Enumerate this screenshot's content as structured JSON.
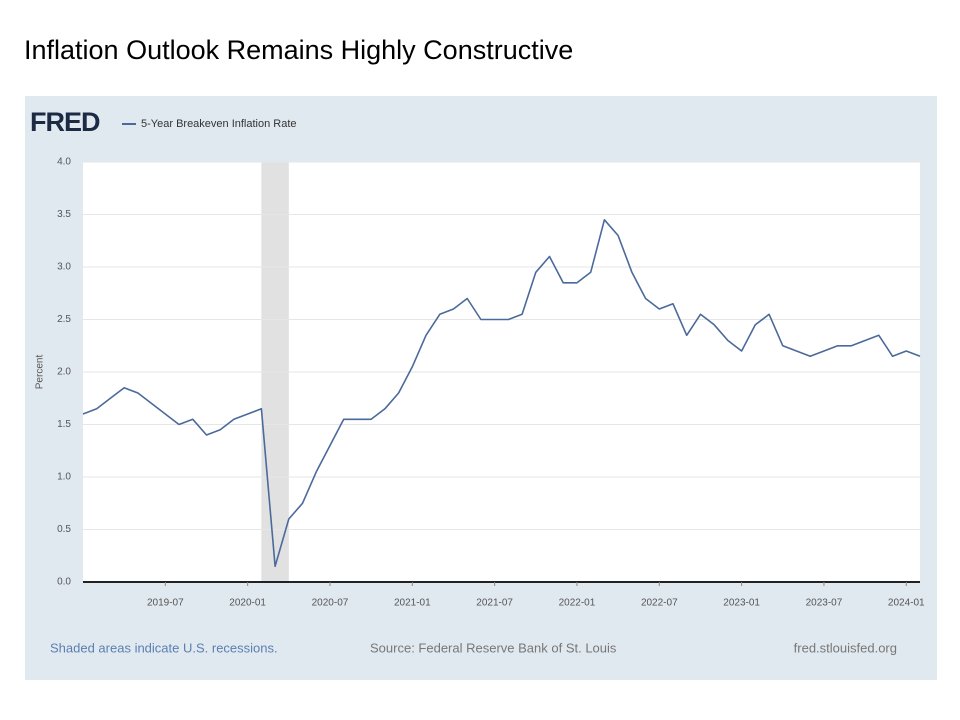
{
  "chart_data": {
    "type": "line",
    "title": "Inflation Outlook Remains Highly Constructive",
    "logo": "FRED",
    "y_label": "Percent",
    "recession_note": "Shaded areas indicate U.S. recessions.",
    "source": "Source: Federal Reserve Bank of St. Louis",
    "site": "fred.stlouisfed.org",
    "recessions": [
      [
        "2020-02",
        "2020-04"
      ]
    ],
    "recession_color": "#e1e1e1",
    "grid": true,
    "x": [
      "2019-01",
      "2019-02",
      "2019-03",
      "2019-04",
      "2019-05",
      "2019-06",
      "2019-07",
      "2019-08",
      "2019-09",
      "2019-10",
      "2019-11",
      "2019-12",
      "2020-01",
      "2020-02",
      "2020-03",
      "2020-04",
      "2020-05",
      "2020-06",
      "2020-07",
      "2020-08",
      "2020-09",
      "2020-10",
      "2020-11",
      "2020-12",
      "2021-01",
      "2021-02",
      "2021-03",
      "2021-04",
      "2021-05",
      "2021-06",
      "2021-07",
      "2021-08",
      "2021-09",
      "2021-10",
      "2021-11",
      "2021-12",
      "2022-01",
      "2022-02",
      "2022-03",
      "2022-04",
      "2022-05",
      "2022-06",
      "2022-07",
      "2022-08",
      "2022-09",
      "2022-10",
      "2022-11",
      "2022-12",
      "2023-01",
      "2023-02",
      "2023-03",
      "2023-04",
      "2023-05",
      "2023-06",
      "2023-07",
      "2023-08",
      "2023-09",
      "2023-10",
      "2023-11",
      "2023-12",
      "2024-01",
      "2024-02"
    ],
    "series": [
      {
        "name": "5-Year Breakeven Inflation Rate",
        "color": "#4b6a9b",
        "values": [
          1.6,
          1.65,
          1.75,
          1.85,
          1.8,
          1.7,
          1.6,
          1.5,
          1.55,
          1.4,
          1.45,
          1.55,
          1.6,
          1.65,
          0.15,
          0.6,
          0.75,
          1.05,
          1.3,
          1.55,
          1.55,
          1.55,
          1.65,
          1.8,
          2.05,
          2.35,
          2.55,
          2.6,
          2.7,
          2.5,
          2.5,
          2.5,
          2.55,
          2.95,
          3.1,
          2.85,
          2.85,
          2.95,
          3.45,
          3.3,
          2.95,
          2.7,
          2.6,
          2.65,
          2.35,
          2.55,
          2.45,
          2.3,
          2.2,
          2.45,
          2.55,
          2.25,
          2.2,
          2.15,
          2.2,
          2.25,
          2.25,
          2.3,
          2.35,
          2.15,
          2.2,
          2.15
        ]
      }
    ],
    "xlim": [
      "2019-01",
      "2024-02"
    ],
    "xticks": [
      "2019-07",
      "2020-01",
      "2020-07",
      "2021-01",
      "2021-07",
      "2022-01",
      "2022-07",
      "2023-01",
      "2023-07",
      "2024-01"
    ],
    "ylim": [
      0,
      4
    ],
    "yticks": [
      {
        "value": 0,
        "label": "0.0"
      },
      0.5,
      {
        "value": 1,
        "label": "1.0"
      },
      1.5,
      {
        "value": 2,
        "label": "2.0"
      },
      2.5,
      {
        "value": 3,
        "label": "3.0"
      },
      3.5,
      {
        "value": 4,
        "label": "4.0"
      }
    ]
  }
}
